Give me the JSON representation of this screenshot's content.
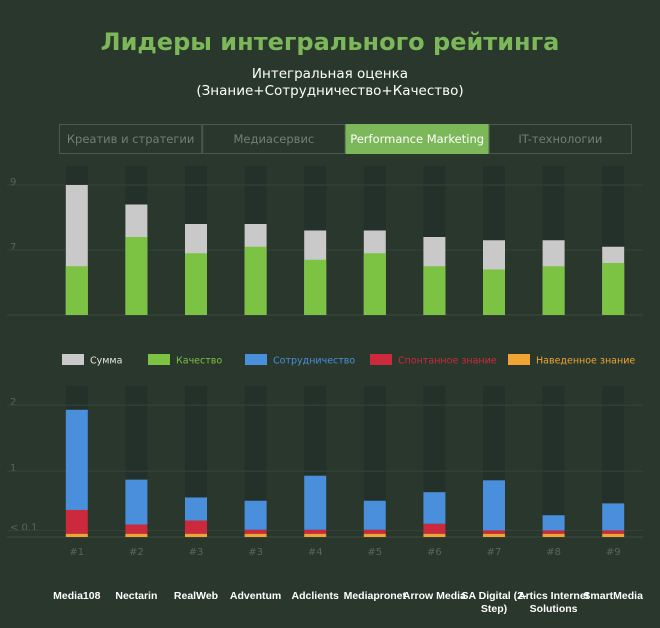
{
  "title": "Лидеры интегрального рейтинга",
  "subtitle": [
    "Интегральная оценка",
    "(Знание+Сотрудничество+Качество)"
  ],
  "tabs": {
    "items": [
      "Креатив и стратегии",
      "Медиасервис",
      "Performance Marketing",
      "IT-технологии"
    ],
    "active": 2
  },
  "chart_data": [
    {
      "type": "bar",
      "mode": "overlap",
      "ylim": [
        5,
        9.4
      ],
      "yticks": [
        7,
        9
      ],
      "grid": true,
      "series": [
        {
          "name": "Сумма",
          "color": "#c9c9c9",
          "values": [
            9.0,
            8.4,
            7.8,
            7.8,
            7.6,
            7.6,
            7.4,
            7.3,
            7.3,
            7.1
          ]
        },
        {
          "name": "Качество",
          "color": "#7cc243",
          "values": [
            6.5,
            7.4,
            6.9,
            7.1,
            6.7,
            6.9,
            6.5,
            6.4,
            6.5,
            6.6
          ]
        }
      ]
    },
    {
      "type": "bar",
      "mode": "stacked",
      "ylim": [
        0,
        2.2
      ],
      "yticks": [
        {
          "value": 0.1,
          "label": "< 0.1"
        },
        1,
        2
      ],
      "categories": [
        "Media108",
        "Nectarin",
        "RealWeb",
        "Adventum",
        "Adclients",
        "Mediapronet",
        "Arrow Media",
        "SA Digital (2-Step)",
        "Artics Internet Solutions",
        "SmartMedia"
      ],
      "ranks": [
        "#1",
        "#2",
        "#3",
        "#3",
        "#4",
        "#5",
        "#6",
        "#7",
        "#8",
        "#9"
      ],
      "series": [
        {
          "name": "Сотрудничество",
          "color": "#4a8fdb",
          "values": [
            1.52,
            0.68,
            0.35,
            0.44,
            0.82,
            0.44,
            0.48,
            0.76,
            0.23,
            0.41
          ]
        },
        {
          "name": "Спонтанное знание",
          "color": "#cc2a3c",
          "values": [
            0.36,
            0.14,
            0.2,
            0.06,
            0.06,
            0.06,
            0.15,
            0.05,
            0.05,
            0.05
          ]
        },
        {
          "name": "Наведенное знание",
          "color": "#f0a436",
          "values": [
            0.05,
            0.05,
            0.05,
            0.05,
            0.05,
            0.05,
            0.05,
            0.05,
            0.05,
            0.05
          ]
        }
      ]
    }
  ]
}
